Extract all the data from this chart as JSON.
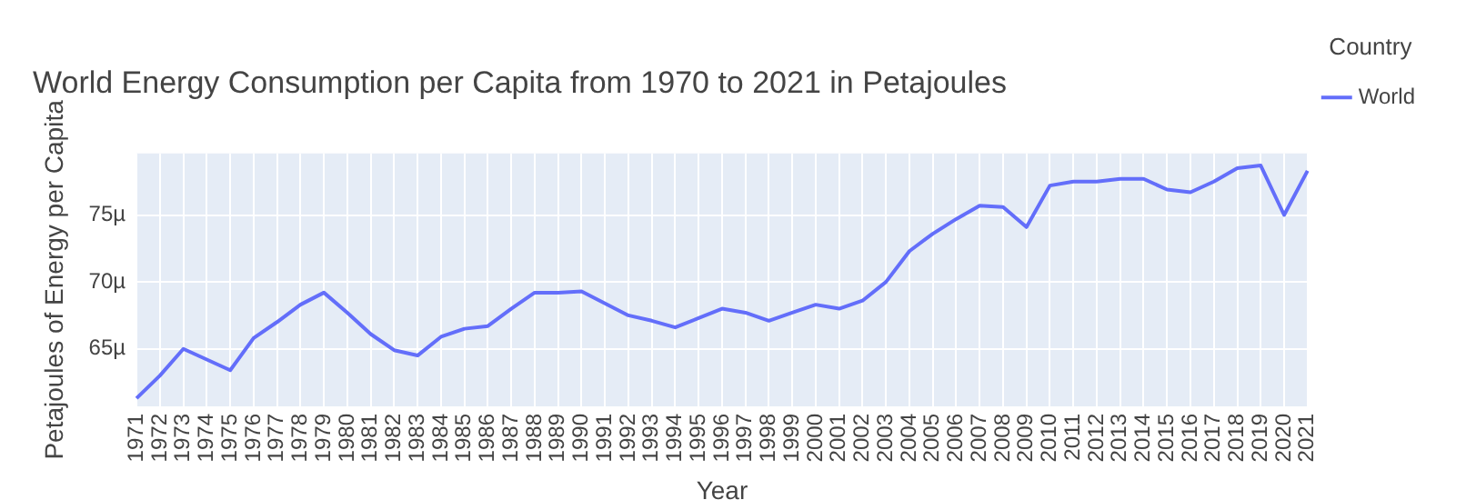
{
  "chart_data": {
    "type": "line",
    "title": "World Energy Consumption per Capita from 1970 to 2021 in Petajoules",
    "xlabel": "Year",
    "ylabel": "Petajoules of Energy per Capita",
    "legend_title": "Country",
    "categories": [
      "1971",
      "1972",
      "1973",
      "1974",
      "1975",
      "1976",
      "1977",
      "1978",
      "1979",
      "1980",
      "1981",
      "1982",
      "1983",
      "1984",
      "1985",
      "1986",
      "1987",
      "1988",
      "1989",
      "1990",
      "1991",
      "1992",
      "1993",
      "1994",
      "1995",
      "1996",
      "1997",
      "1998",
      "1999",
      "2000",
      "2001",
      "2002",
      "2003",
      "2004",
      "2005",
      "2006",
      "2007",
      "2008",
      "2009",
      "2010",
      "2011",
      "2012",
      "2013",
      "2014",
      "2015",
      "2016",
      "2017",
      "2018",
      "2019",
      "2020",
      "2021"
    ],
    "series": [
      {
        "name": "World",
        "color": "#636efa",
        "values": [
          61.3,
          63.0,
          65.0,
          64.2,
          63.4,
          65.8,
          67.0,
          68.3,
          69.2,
          67.7,
          66.1,
          64.9,
          64.5,
          65.9,
          66.5,
          66.7,
          68.0,
          69.2,
          69.2,
          69.3,
          68.4,
          67.5,
          67.1,
          66.6,
          67.3,
          68.0,
          67.7,
          67.1,
          67.7,
          68.3,
          68.0,
          68.6,
          70.0,
          72.3,
          73.6,
          74.7,
          75.7,
          75.6,
          74.1,
          77.2,
          77.5,
          77.5,
          77.7,
          77.7,
          76.9,
          76.7,
          77.5,
          78.5,
          78.7,
          75.0,
          78.3
        ]
      }
    ],
    "ylim": [
      60.7,
      79.6
    ],
    "yticks": [
      {
        "value": 65,
        "label": "65µ"
      },
      {
        "value": 70,
        "label": "70µ"
      },
      {
        "value": 75,
        "label": "75µ"
      }
    ],
    "grid": true,
    "legend": "right",
    "marker": "none",
    "line_style": "solid"
  }
}
